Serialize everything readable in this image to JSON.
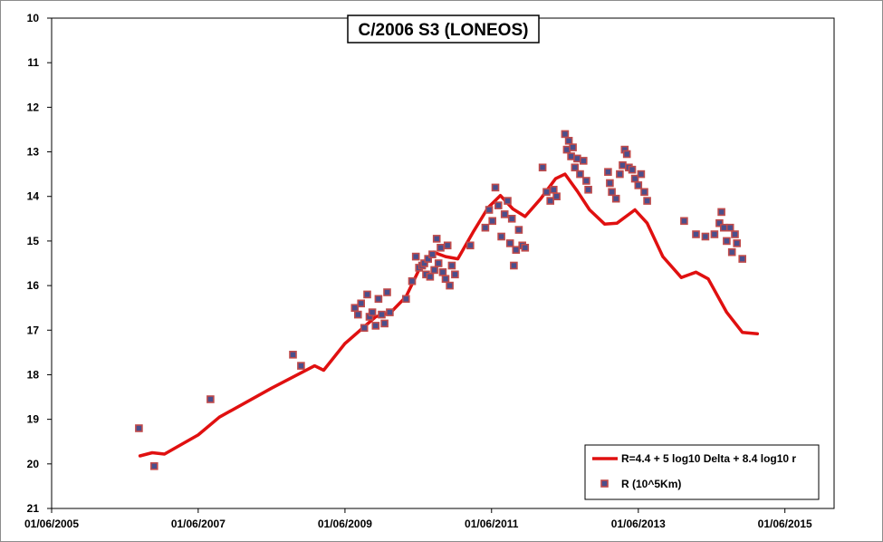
{
  "chart_data": {
    "type": "scatter",
    "title": "C/2006 S3 (LONEOS)",
    "xlabel": "",
    "ylabel": "",
    "x_axis": {
      "type": "date",
      "min": "2005-06-01",
      "max": "2016-02-01",
      "tick_labels": [
        "01/06/2005",
        "01/06/2007",
        "01/06/2009",
        "01/06/2011",
        "01/06/2013",
        "01/06/2015"
      ],
      "tick_dates": [
        "2005-06-01",
        "2007-06-01",
        "2009-06-01",
        "2011-06-01",
        "2013-06-01",
        "2015-06-01"
      ]
    },
    "y_axis": {
      "min": 10,
      "max": 21,
      "inverted": true,
      "tick_labels": [
        "10",
        "11",
        "12",
        "13",
        "14",
        "15",
        "16",
        "17",
        "18",
        "19",
        "20",
        "21"
      ]
    },
    "grid": false,
    "legend_position": "bottom-right",
    "colors": {
      "model_line": "#e01010",
      "marker_fill": "#4a4f8c",
      "marker_edge": "#c04a4a"
    },
    "series": [
      {
        "name": "R=4.4 + 5 log10 Delta + 8.4 log10 r",
        "kind": "line",
        "points": [
          [
            "2006-08-15",
            19.82
          ],
          [
            "2006-10-15",
            19.75
          ],
          [
            "2006-12-15",
            19.78
          ],
          [
            "2007-06-01",
            19.35
          ],
          [
            "2007-09-15",
            18.95
          ],
          [
            "2008-06-01",
            18.3
          ],
          [
            "2009-01-01",
            17.8
          ],
          [
            "2009-02-15",
            17.9
          ],
          [
            "2009-06-01",
            17.3
          ],
          [
            "2009-11-01",
            16.7
          ],
          [
            "2010-01-15",
            16.6
          ],
          [
            "2010-04-01",
            16.25
          ],
          [
            "2010-06-15",
            15.55
          ],
          [
            "2010-08-15",
            15.25
          ],
          [
            "2010-10-15",
            15.35
          ],
          [
            "2010-12-15",
            15.4
          ],
          [
            "2011-03-01",
            14.8
          ],
          [
            "2011-05-15",
            14.25
          ],
          [
            "2011-07-15",
            13.98
          ],
          [
            "2011-09-15",
            14.28
          ],
          [
            "2011-11-15",
            14.45
          ],
          [
            "2012-02-01",
            14.05
          ],
          [
            "2012-04-15",
            13.6
          ],
          [
            "2012-06-01",
            13.5
          ],
          [
            "2012-08-01",
            13.88
          ],
          [
            "2012-10-01",
            14.3
          ],
          [
            "2012-12-15",
            14.62
          ],
          [
            "2013-02-15",
            14.6
          ],
          [
            "2013-05-15",
            14.3
          ],
          [
            "2013-07-15",
            14.6
          ],
          [
            "2013-10-01",
            15.35
          ],
          [
            "2014-01-01",
            15.82
          ],
          [
            "2014-03-15",
            15.7
          ],
          [
            "2014-05-15",
            15.85
          ],
          [
            "2014-08-15",
            16.6
          ],
          [
            "2014-11-01",
            17.05
          ],
          [
            "2015-01-15",
            17.08
          ]
        ]
      },
      {
        "name": "R (10^5Km)",
        "kind": "scatter",
        "points": [
          [
            "2006-08-10",
            19.2
          ],
          [
            "2006-10-25",
            20.05
          ],
          [
            "2007-08-01",
            18.55
          ],
          [
            "2008-09-15",
            17.55
          ],
          [
            "2008-10-25",
            17.8
          ],
          [
            "2009-07-20",
            16.5
          ],
          [
            "2009-08-05",
            16.65
          ],
          [
            "2009-08-20",
            16.4
          ],
          [
            "2009-09-05",
            16.95
          ],
          [
            "2009-09-20",
            16.2
          ],
          [
            "2009-10-01",
            16.7
          ],
          [
            "2009-10-15",
            16.6
          ],
          [
            "2009-11-01",
            16.9
          ],
          [
            "2009-11-15",
            16.3
          ],
          [
            "2009-12-01",
            16.65
          ],
          [
            "2009-12-15",
            16.85
          ],
          [
            "2009-12-28",
            16.15
          ],
          [
            "2010-01-10",
            16.6
          ],
          [
            "2010-04-01",
            16.3
          ],
          [
            "2010-05-01",
            15.9
          ],
          [
            "2010-05-20",
            15.35
          ],
          [
            "2010-06-05",
            15.6
          ],
          [
            "2010-06-20",
            15.55
          ],
          [
            "2010-07-01",
            15.5
          ],
          [
            "2010-07-10",
            15.75
          ],
          [
            "2010-07-20",
            15.4
          ],
          [
            "2010-07-30",
            15.8
          ],
          [
            "2010-08-10",
            15.3
          ],
          [
            "2010-08-20",
            15.65
          ],
          [
            "2010-09-01",
            14.95
          ],
          [
            "2010-09-10",
            15.5
          ],
          [
            "2010-09-20",
            15.15
          ],
          [
            "2010-10-01",
            15.7
          ],
          [
            "2010-10-15",
            15.85
          ],
          [
            "2010-10-25",
            15.1
          ],
          [
            "2010-11-05",
            16.0
          ],
          [
            "2010-11-15",
            15.55
          ],
          [
            "2010-12-01",
            15.75
          ],
          [
            "2011-02-15",
            15.1
          ],
          [
            "2011-05-01",
            14.7
          ],
          [
            "2011-05-20",
            14.3
          ],
          [
            "2011-06-05",
            14.55
          ],
          [
            "2011-06-20",
            13.8
          ],
          [
            "2011-07-05",
            14.2
          ],
          [
            "2011-07-20",
            14.9
          ],
          [
            "2011-08-05",
            14.4
          ],
          [
            "2011-08-20",
            14.1
          ],
          [
            "2011-09-01",
            15.05
          ],
          [
            "2011-09-10",
            14.5
          ],
          [
            "2011-09-20",
            15.55
          ],
          [
            "2011-10-01",
            15.2
          ],
          [
            "2011-10-15",
            14.75
          ],
          [
            "2011-11-01",
            15.1
          ],
          [
            "2011-11-15",
            15.15
          ],
          [
            "2012-02-10",
            13.35
          ],
          [
            "2012-03-01",
            13.9
          ],
          [
            "2012-03-20",
            14.1
          ],
          [
            "2012-04-05",
            13.85
          ],
          [
            "2012-04-20",
            14.0
          ],
          [
            "2012-06-01",
            12.6
          ],
          [
            "2012-06-10",
            12.95
          ],
          [
            "2012-06-20",
            12.75
          ],
          [
            "2012-07-01",
            13.1
          ],
          [
            "2012-07-10",
            12.9
          ],
          [
            "2012-07-20",
            13.35
          ],
          [
            "2012-08-01",
            13.15
          ],
          [
            "2012-08-15",
            13.5
          ],
          [
            "2012-09-01",
            13.2
          ],
          [
            "2012-09-15",
            13.65
          ],
          [
            "2012-09-25",
            13.85
          ],
          [
            "2013-01-01",
            13.45
          ],
          [
            "2013-01-10",
            13.7
          ],
          [
            "2013-01-20",
            13.9
          ],
          [
            "2013-02-10",
            14.05
          ],
          [
            "2013-03-01",
            13.5
          ],
          [
            "2013-03-15",
            13.3
          ],
          [
            "2013-03-25",
            12.95
          ],
          [
            "2013-04-05",
            13.05
          ],
          [
            "2013-04-15",
            13.35
          ],
          [
            "2013-05-01",
            13.4
          ],
          [
            "2013-05-15",
            13.6
          ],
          [
            "2013-06-01",
            13.75
          ],
          [
            "2013-06-15",
            13.5
          ],
          [
            "2013-07-01",
            13.9
          ],
          [
            "2013-07-15",
            14.1
          ],
          [
            "2014-01-15",
            14.55
          ],
          [
            "2014-03-15",
            14.85
          ],
          [
            "2014-05-01",
            14.9
          ],
          [
            "2014-06-15",
            14.85
          ],
          [
            "2014-07-10",
            14.6
          ],
          [
            "2014-07-20",
            14.35
          ],
          [
            "2014-08-01",
            14.7
          ],
          [
            "2014-08-15",
            15.0
          ],
          [
            "2014-09-01",
            14.7
          ],
          [
            "2014-09-10",
            15.25
          ],
          [
            "2014-09-25",
            14.85
          ],
          [
            "2014-10-05",
            15.05
          ],
          [
            "2014-11-01",
            15.4
          ]
        ]
      }
    ]
  }
}
